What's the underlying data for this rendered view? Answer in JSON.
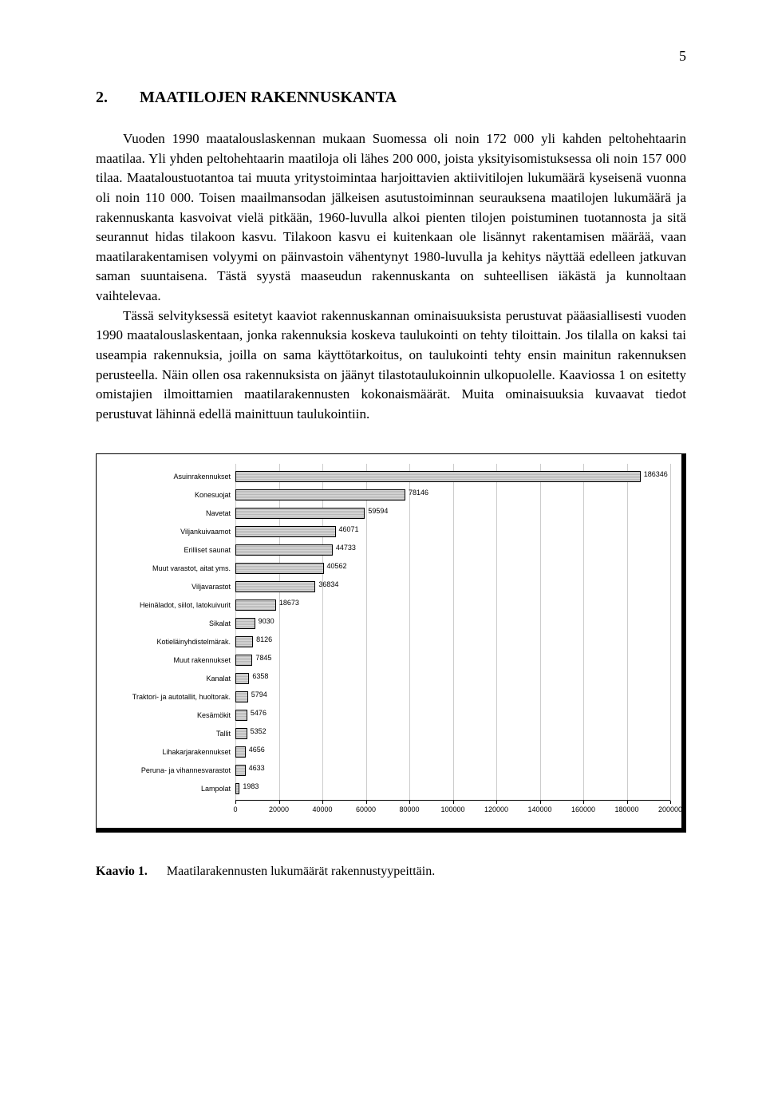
{
  "page_number": "5",
  "section": {
    "number": "2.",
    "title": "MAATILOJEN RAKENNUSKANTA"
  },
  "paragraphs": [
    "Vuoden 1990 maatalouslaskennan mukaan Suomessa oli noin 172 000 yli kahden peltohehtaarin maatilaa. Yli yhden peltohehtaarin maatiloja oli lähes 200 000, joista yksityisomistuksessa oli noin 157 000 tilaa. Maataloustuotantoa tai muuta yritystoimintaa harjoittavien aktiivitilojen lukumäärä kyseisenä vuonna oli noin 110 000. Toisen maailmansodan jälkeisen asutustoiminnan seurauksena maatilojen lukumäärä ja rakennuskanta kasvoivat vielä pitkään, 1960-luvulla alkoi pienten tilojen poistuminen tuotannosta ja sitä seurannut hidas tilakoon kasvu. Tilakoon kasvu ei kuitenkaan ole lisännyt rakentamisen määrää, vaan maatilarakentamisen volyymi on päinvastoin vähentynyt 1980-luvulla ja kehitys näyttää edelleen jatkuvan saman suuntaisena. Tästä syystä maaseudun rakennuskanta on suhteellisen iäkästä ja kunnoltaan vaihtelevaa.",
    "Tässä selvityksessä esitetyt kaaviot rakennuskannan ominaisuuksista perustuvat pääasiallisesti vuoden 1990 maatalouslaskentaan, jonka rakennuksia koskeva taulukointi on tehty tiloittain. Jos tilalla on kaksi tai useampia rakennuksia, joilla on sama käyttötarkoitus, on taulukointi tehty ensin mainitun rakennuksen perusteella. Näin ollen osa rakennuksista on jäänyt tilastotaulukoinnin ulkopuolelle. Kaaviossa 1 on esitetty omistajien ilmoittamien maatilarakennusten kokonaismäärät. Muita ominaisuuksia kuvaavat tiedot perustuvat lähinnä edellä mainittuun taulukointiin."
  ],
  "chart": {
    "type": "bar",
    "xlim": [
      0,
      200000
    ],
    "xtick_step": 20000,
    "xticks": [
      0,
      20000,
      40000,
      60000,
      80000,
      100000,
      120000,
      140000,
      160000,
      180000,
      200000
    ],
    "bar_fill": "#c8c8c8",
    "bar_border": "#000000",
    "grid_color": "#cccccc",
    "label_fontsize": 9,
    "value_fontsize": 9,
    "categories": [
      {
        "label": "Asuinrakennukset",
        "value": 186346
      },
      {
        "label": "Konesuojat",
        "value": 78146
      },
      {
        "label": "Navetat",
        "value": 59594
      },
      {
        "label": "Viljankuivaamot",
        "value": 46071
      },
      {
        "label": "Erilliset saunat",
        "value": 44733
      },
      {
        "label": "Muut varastot, aitat yms.",
        "value": 40562
      },
      {
        "label": "Viljavarastot",
        "value": 36834
      },
      {
        "label": "Heinäladot, siilot, latokuivurit",
        "value": 18673
      },
      {
        "label": "Sikalat",
        "value": 9030
      },
      {
        "label": "Kotieläinyhdistelmärak.",
        "value": 8126
      },
      {
        "label": "Muut rakennukset",
        "value": 7845
      },
      {
        "label": "Kanalat",
        "value": 6358
      },
      {
        "label": "Traktori- ja autotallit, huoltorak.",
        "value": 5794
      },
      {
        "label": "Kesämökit",
        "value": 5476
      },
      {
        "label": "Tallit",
        "value": 5352
      },
      {
        "label": "Lihakarjarakennukset",
        "value": 4656
      },
      {
        "label": "Peruna- ja vihannesvarastot",
        "value": 4633
      },
      {
        "label": "Lampolat",
        "value": 1983
      }
    ]
  },
  "caption": {
    "label": "Kaavio 1.",
    "text": "Maatilarakennusten lukumäärät rakennustyypeittäin."
  }
}
